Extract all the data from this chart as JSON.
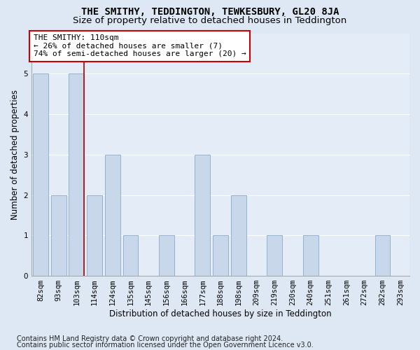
{
  "title": "THE SMITHY, TEDDINGTON, TEWKESBURY, GL20 8JA",
  "subtitle": "Size of property relative to detached houses in Teddington",
  "xlabel": "Distribution of detached houses by size in Teddington",
  "ylabel": "Number of detached properties",
  "categories": [
    "82sqm",
    "93sqm",
    "103sqm",
    "114sqm",
    "124sqm",
    "135sqm",
    "145sqm",
    "156sqm",
    "166sqm",
    "177sqm",
    "188sqm",
    "198sqm",
    "209sqm",
    "219sqm",
    "230sqm",
    "240sqm",
    "251sqm",
    "261sqm",
    "272sqm",
    "282sqm",
    "293sqm"
  ],
  "values": [
    5,
    2,
    5,
    2,
    3,
    1,
    0,
    1,
    0,
    3,
    1,
    2,
    0,
    1,
    0,
    1,
    0,
    0,
    0,
    1,
    0
  ],
  "bar_color": "#c8d8ea",
  "bar_edge_color": "#8aaac8",
  "highlight_line_color": "#aa0000",
  "annotation_text_line1": "THE SMITHY: 110sqm",
  "annotation_text_line2": "← 26% of detached houses are smaller (7)",
  "annotation_text_line3": "74% of semi-detached houses are larger (20) →",
  "annotation_box_color": "#ffffff",
  "annotation_box_edge_color": "#cc0000",
  "ylim": [
    0,
    6
  ],
  "yticks": [
    0,
    1,
    2,
    3,
    4,
    5,
    6
  ],
  "footnote1": "Contains HM Land Registry data © Crown copyright and database right 2024.",
  "footnote2": "Contains public sector information licensed under the Open Government Licence v3.0.",
  "bg_color": "#dde8f4",
  "plot_bg_color": "#e4edf7",
  "grid_color": "#ffffff",
  "title_fontsize": 10,
  "subtitle_fontsize": 9.5,
  "axis_label_fontsize": 8.5,
  "tick_fontsize": 7.5,
  "annotation_fontsize": 8,
  "footnote_fontsize": 7
}
